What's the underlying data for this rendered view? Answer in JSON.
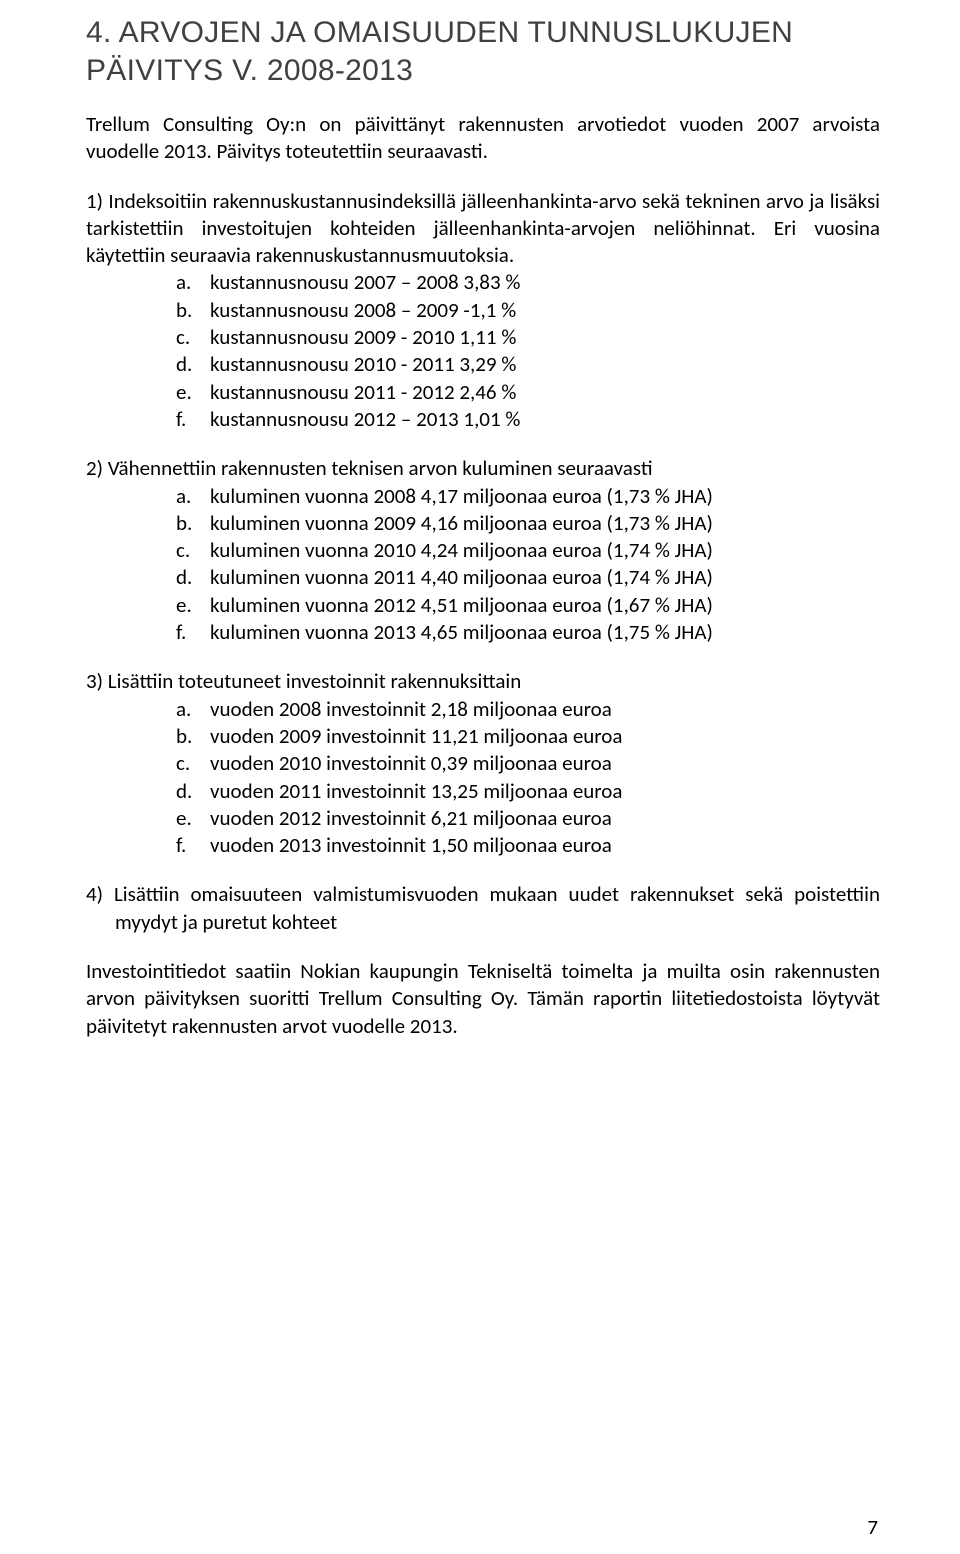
{
  "heading": "4. ARVOJEN JA OMAISUUDEN TUNNUSLUKUJEN PÄIVITYS V. 2008-2013",
  "intro": "Trellum Consulting Oy:n on päivittänyt rakennusten arvotiedot vuoden 2007 arvoista vuodelle 2013. Päivitys toteutettiin seuraavasti.",
  "section1": {
    "lead": "1) Indeksoitiin rakennuskustannusindeksillä jälleenhankinta-arvo sekä tekninen arvo ja lisäksi tarkistettiin investoitujen kohteiden jälleenhankinta-arvojen neliöhinnat. Eri vuosina käytettiin seuraavia rakennuskustannusmuutoksia.",
    "items": [
      "kustannusnousu 2007 – 2008 3,83 %",
      "kustannusnousu 2008 – 2009 -1,1 %",
      "kustannusnousu 2009 - 2010 1,11 %",
      "kustannusnousu 2010 - 2011 3,29 %",
      "kustannusnousu 2011 - 2012 2,46 %",
      "kustannusnousu 2012 – 2013 1,01 %"
    ]
  },
  "section2": {
    "lead": "2)  Vähennettiin rakennusten teknisen arvon kuluminen seuraavasti",
    "items": [
      "kuluminen vuonna 2008 4,17 miljoonaa euroa (1,73 % JHA)",
      "kuluminen vuonna 2009 4,16 miljoonaa euroa (1,73 % JHA)",
      "kuluminen vuonna 2010 4,24 miljoonaa euroa (1,74 % JHA)",
      "kuluminen vuonna 2011 4,40 miljoonaa euroa (1,74 % JHA)",
      "kuluminen vuonna 2012 4,51 miljoonaa euroa (1,67 % JHA)",
      "kuluminen vuonna 2013 4,65 miljoonaa euroa (1,75 % JHA)"
    ]
  },
  "section3": {
    "lead": "3)  Lisättiin toteutuneet investoinnit rakennuksittain",
    "items": [
      "vuoden 2008 investoinnit 2,18 miljoonaa euroa",
      "vuoden 2009 investoinnit 11,21 miljoonaa euroa",
      "vuoden 2010 investoinnit 0,39 miljoonaa euroa",
      "vuoden 2011 investoinnit 13,25 miljoonaa euroa",
      "vuoden 2012 investoinnit 6,21 miljoonaa euroa",
      "vuoden 2013 investoinnit 1,50 miljoonaa euroa"
    ]
  },
  "section4": {
    "lead": "4) Lisättiin omaisuuteen valmistumisvuoden mukaan uudet rakennukset sekä poistettiin myydyt ja puretut kohteet"
  },
  "closing": "Investointitiedot saatiin Nokian kaupungin Tekniseltä toimelta ja muilta osin rakennusten arvon päivityksen suoritti Trellum Consulting Oy. Tämän raportin liitetiedostoista löytyvät päivitetyt rakennusten arvot vuodelle 2013.",
  "page_number": "7",
  "letters": [
    "a",
    "b",
    "c",
    "d",
    "e",
    "f"
  ]
}
